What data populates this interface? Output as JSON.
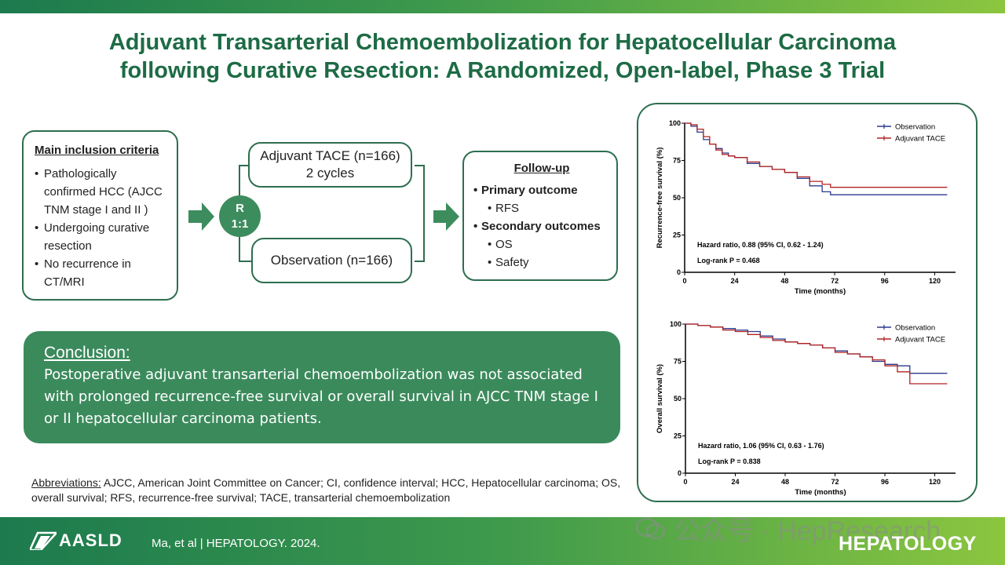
{
  "title": {
    "line1": "Adjuvant Transarterial Chemoembolization for Hepatocellular Carcinoma",
    "line2": "following Curative Resection: A Randomized, Open-label, Phase 3 Trial"
  },
  "inclusion": {
    "heading": "Main inclusion criteria",
    "items": [
      "Pathologically confirmed HCC (AJCC TNM stage I and II )",
      "Undergoing curative resection",
      "No recurrence in CT/MRI"
    ]
  },
  "randomization": {
    "line1": "R",
    "line2": "1:1"
  },
  "arms": {
    "tace_line1": "Adjuvant TACE (n=166)",
    "tace_line2": "2 cycles",
    "observation": "Observation (n=166)"
  },
  "followup": {
    "heading": "Follow-up",
    "primary": "Primary outcome",
    "primary_items": [
      "RFS"
    ],
    "secondary": "Secondary outcomes",
    "secondary_items": [
      "OS",
      "Safety"
    ]
  },
  "conclusion": {
    "heading": "Conclusion:",
    "text": "Postoperative adjuvant transarterial chemoembolization was not associated with prolonged recurrence-free survival or overall survival in AJCC TNM stage I or II hepatocellular carcinoma patients."
  },
  "abbreviations": {
    "label": "Abbreviations:",
    "text": " AJCC, American Joint Committee on Cancer; CI, confidence interval; HCC, Hepatocellular carcinoma; OS, overall survival; RFS, recurrence-free survival; TACE, transarterial chemoembolization"
  },
  "footer": {
    "logo": "AASLD",
    "citation": "Ma, et al  |  HEPATOLOGY. 2024.",
    "journal": "HEPATOLOGY",
    "watermark": "公众号 · HepResearch"
  },
  "colors": {
    "observation": "#2b3a8c",
    "tace": "#b22222",
    "brand_green": "#1d6b45"
  },
  "chart_data": [
    {
      "type": "line",
      "title": "",
      "xlabel": "Time (months)",
      "ylabel": "Recurrence-free survival (%)",
      "xlim": [
        0,
        130
      ],
      "ylim": [
        0,
        100
      ],
      "xticks": [
        0,
        24,
        48,
        72,
        96,
        120
      ],
      "yticks": [
        0,
        25,
        50,
        75,
        100
      ],
      "legend_position": "top-right",
      "annotations": [
        "Hazard ratio, 0.88 (95% CI, 0.62 - 1.24)",
        "Log-rank P = 0.468"
      ],
      "series": [
        {
          "name": "Observation",
          "color": "#2b3a8c",
          "x": [
            0,
            3,
            6,
            9,
            12,
            15,
            18,
            21,
            24,
            30,
            36,
            42,
            48,
            54,
            60,
            66,
            70,
            80,
            90,
            100,
            110,
            120,
            126
          ],
          "y": [
            100,
            98,
            94,
            89,
            86,
            83,
            80,
            78,
            77,
            73,
            71,
            69,
            67,
            63,
            58,
            54,
            52,
            52,
            52,
            52,
            52,
            52,
            52
          ]
        },
        {
          "name": "Adjuvant TACE",
          "color": "#b22222",
          "x": [
            0,
            3,
            6,
            9,
            12,
            15,
            18,
            21,
            24,
            30,
            36,
            42,
            48,
            54,
            60,
            66,
            70,
            80,
            90,
            100,
            110,
            120,
            126
          ],
          "y": [
            100,
            99,
            96,
            91,
            86,
            82,
            79,
            78,
            77,
            74,
            71,
            69,
            67,
            64,
            61,
            59,
            57,
            57,
            57,
            57,
            57,
            57,
            57
          ]
        }
      ]
    },
    {
      "type": "line",
      "title": "",
      "xlabel": "Time (months)",
      "ylabel": "Overall survival (%)",
      "xlim": [
        0,
        130
      ],
      "ylim": [
        0,
        100
      ],
      "xticks": [
        0,
        24,
        48,
        72,
        96,
        120
      ],
      "yticks": [
        0,
        25,
        50,
        75,
        100
      ],
      "legend_position": "top-right",
      "annotations": [
        "Hazard ratio, 1.06 (95% CI, 0.63 - 1.76)",
        "Log-rank P = 0.838"
      ],
      "series": [
        {
          "name": "Observation",
          "color": "#2b3a8c",
          "x": [
            0,
            6,
            12,
            18,
            24,
            30,
            36,
            42,
            48,
            54,
            60,
            66,
            72,
            78,
            84,
            90,
            96,
            102,
            108,
            114,
            120,
            126
          ],
          "y": [
            100,
            99,
            98,
            97,
            96,
            95,
            92,
            90,
            88,
            87,
            86,
            84,
            82,
            80,
            78,
            75,
            73,
            72,
            67,
            67,
            67,
            67
          ]
        },
        {
          "name": "Adjuvant TACE",
          "color": "#b22222",
          "x": [
            0,
            6,
            12,
            18,
            24,
            30,
            36,
            42,
            48,
            54,
            60,
            66,
            72,
            78,
            84,
            90,
            96,
            102,
            108,
            114,
            120,
            126
          ],
          "y": [
            100,
            99,
            98,
            96,
            95,
            93,
            91,
            89,
            88,
            87,
            86,
            84,
            81,
            80,
            78,
            76,
            72,
            68,
            60,
            60,
            60,
            60
          ]
        }
      ]
    }
  ]
}
